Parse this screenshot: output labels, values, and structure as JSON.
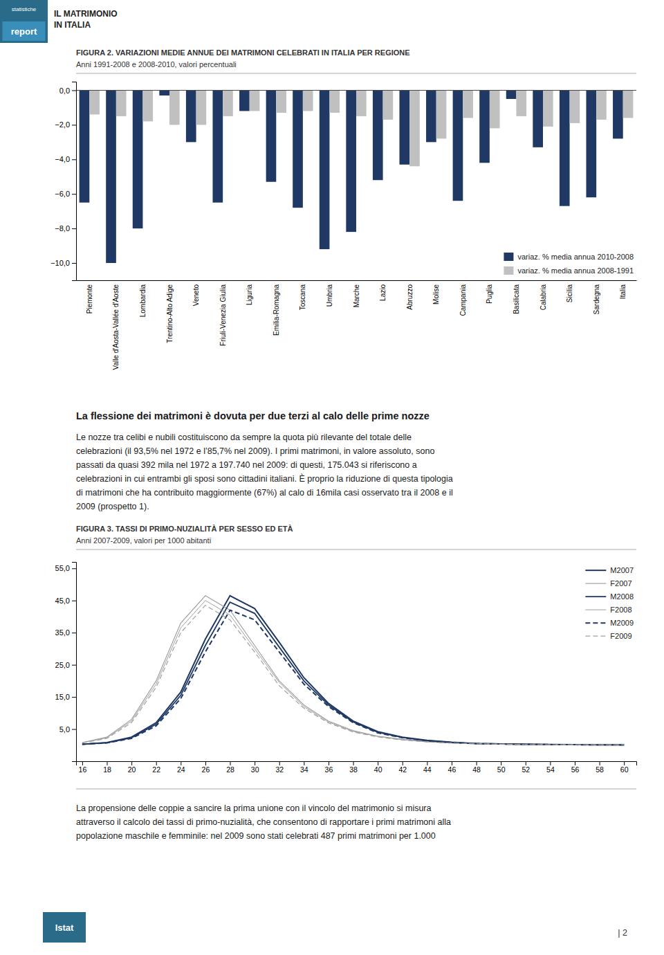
{
  "header": {
    "logo": [
      "statistiche",
      "report"
    ],
    "color": "#2a6b8a",
    "lines": [
      "IL MATRIMONIO",
      "IN ITALIA"
    ]
  },
  "chart_data": [
    {
      "type": "bar",
      "title": "FIGURA 2. VARIAZIONI MEDIE ANNUE DEI MATRIMONI CELEBRATI IN ITALIA PER REGIONE",
      "subtitle": "Anni 1991-2008 e 2008-2010, valori percentuali",
      "categories": [
        "Piemonte",
        "Valle d'Aosta-Vallée d'Aoste",
        "Lombardia",
        "Trentino-Alto Adige",
        "Veneto",
        "Friuli-Venezia Giulia",
        "Liguria",
        "Emilia-Romagna",
        "Toscana",
        "Umbria",
        "Marche",
        "Lazio",
        "Abruzzo",
        "Molise",
        "Campania",
        "Puglia",
        "Basilicata",
        "Calabria",
        "Sicilia",
        "Sardegna",
        "Italia"
      ],
      "series": [
        {
          "name": "variaz. % media annua 2010-2008",
          "color": "#1f3864",
          "values": [
            -6.5,
            -10.0,
            -8.0,
            -0.3,
            -3.0,
            -6.5,
            -1.2,
            -5.3,
            -6.8,
            -9.2,
            -8.2,
            -5.2,
            -4.3,
            -3.0,
            -6.4,
            -4.2,
            -0.5,
            -3.3,
            -6.7,
            -6.2,
            -2.8
          ]
        },
        {
          "name": "variaz. % media annua 2008-1991",
          "color": "#c0c0c0",
          "values": [
            -1.4,
            -1.5,
            -1.8,
            -2.0,
            -2.0,
            -1.5,
            -1.2,
            -1.3,
            -1.2,
            -1.3,
            -1.5,
            -1.7,
            -4.4,
            -2.8,
            -1.6,
            -2.2,
            -1.5,
            -2.1,
            -1.9,
            -1.7,
            -1.6
          ]
        }
      ],
      "ylim": [
        -11,
        0.5
      ],
      "yticks": [
        {
          "value": 0.0,
          "label": "0,0"
        },
        {
          "value": -2.0,
          "label": "−2,0"
        },
        {
          "value": -4.0,
          "label": "−4,0"
        },
        {
          "value": -6.0,
          "label": "−6,0"
        },
        {
          "value": -8.0,
          "label": "−8,0"
        },
        {
          "value": -10.0,
          "label": "−10,0"
        }
      ],
      "grid": false,
      "legend": "lower right"
    },
    {
      "type": "line",
      "title": "FIGURA 3. TASSI DI PRIMO-NUZIALITÀ PER SESSO ED ETÀ",
      "subtitle": "Anni 2007-2009, valori per 1000 abitanti",
      "x": [
        16,
        18,
        20,
        22,
        24,
        26,
        28,
        30,
        32,
        34,
        36,
        38,
        40,
        42,
        44,
        46,
        48,
        50,
        52,
        54,
        56,
        58,
        60
      ],
      "xlim": [
        15.5,
        61
      ],
      "xticks": [
        16,
        18,
        20,
        22,
        24,
        26,
        28,
        30,
        32,
        34,
        36,
        38,
        40,
        42,
        44,
        46,
        48,
        50,
        52,
        54,
        56,
        58,
        60
      ],
      "series": [
        {
          "name": "M2007",
          "color": "#1f3864",
          "line_style": "solid",
          "values": [
            0.3,
            0.8,
            2.5,
            7.0,
            16.5,
            33.0,
            46.5,
            42.5,
            32.0,
            21.0,
            13.0,
            7.5,
            4.2,
            2.5,
            1.5,
            0.9,
            0.5,
            0.4,
            0.3,
            0.2,
            0.15,
            0.1,
            0.1
          ]
        },
        {
          "name": "F2007",
          "color": "#a0a0a0",
          "line_style": "solid",
          "values": [
            0.8,
            2.5,
            8.0,
            20.0,
            38.0,
            46.5,
            42.0,
            31.0,
            20.0,
            12.5,
            7.5,
            4.5,
            2.8,
            1.8,
            1.1,
            0.7,
            0.5,
            0.35,
            0.25,
            0.2,
            0.15,
            0.1,
            0.1
          ]
        },
        {
          "name": "M2008",
          "color": "#1f3864",
          "line_style": "solid",
          "values": [
            0.3,
            0.75,
            2.3,
            6.5,
            15.5,
            31.0,
            44.5,
            41.0,
            30.5,
            20.0,
            12.5,
            7.2,
            4.0,
            2.4,
            1.4,
            0.85,
            0.5,
            0.38,
            0.28,
            0.2,
            0.15,
            0.1,
            0.1
          ]
        },
        {
          "name": "F2008",
          "color": "#a0a0a0",
          "line_style": "solid",
          "values": [
            0.75,
            2.3,
            7.5,
            19.0,
            36.5,
            45.0,
            40.5,
            30.0,
            19.5,
            12.0,
            7.2,
            4.3,
            2.7,
            1.7,
            1.05,
            0.65,
            0.45,
            0.33,
            0.23,
            0.18,
            0.13,
            0.1,
            0.08
          ]
        },
        {
          "name": "M2009",
          "color": "#1f3864",
          "line_style": "dashed",
          "values": [
            0.28,
            0.7,
            2.1,
            6.0,
            14.5,
            29.0,
            42.0,
            39.0,
            29.0,
            19.0,
            12.0,
            7.0,
            3.8,
            2.3,
            1.35,
            0.8,
            0.48,
            0.36,
            0.26,
            0.19,
            0.14,
            0.1,
            0.08
          ]
        },
        {
          "name": "F2009",
          "color": "#a0a0a0",
          "line_style": "dashed",
          "values": [
            0.7,
            2.1,
            7.0,
            18.0,
            35.0,
            43.5,
            39.0,
            29.0,
            18.5,
            11.5,
            6.9,
            4.1,
            2.55,
            1.6,
            1.0,
            0.62,
            0.43,
            0.31,
            0.22,
            0.17,
            0.12,
            0.09,
            0.07
          ]
        }
      ],
      "ylim": [
        -5,
        57
      ],
      "yticks": [
        {
          "value": 5.0,
          "label": "5,0"
        },
        {
          "value": 15.0,
          "label": "15,0"
        },
        {
          "value": 25.0,
          "label": "25,0"
        },
        {
          "value": 35.0,
          "label": "35,0"
        },
        {
          "value": 45.0,
          "label": "45,0"
        },
        {
          "value": 55.0,
          "label": "55,0"
        }
      ],
      "grid": false,
      "legend": "upper right"
    }
  ],
  "text": {
    "heading": "La flessione dei matrimoni è dovuta per due terzi al calo delle prime nozze",
    "paragraphs": [
      [
        "Le nozze tra celibi e nubili costituiscono da sempre la quota più rilevante del totale delle",
        "celebrazioni (il 93,5% nel 1972 e l’85,7% nel 2009). I primi matrimoni, in valore assoluto, sono",
        "passati da quasi 392 mila nel 1972 a 197.740 nel 2009: di questi, 175.043 si riferiscono a",
        "celebrazioni in cui entrambi gli sposi sono cittadini italiani. È proprio la riduzione di questa tipologia",
        "di matrimoni che ha contribuito maggiormente (67%) al calo di 16mila casi osservato tra il 2008 e il",
        "2009 (prospetto 1)."
      ],
      [
        "La propensione delle coppie a sancire la prima unione con il vincolo del matrimonio si misura",
        "attraverso il calcolo dei tassi di primo-nuzialità, che consentono di rapportare i primi matrimoni alla",
        "popolazione maschile e femminile: nel 2009 sono stati celebrati 487 primi matrimoni per 1.000"
      ]
    ]
  },
  "footer": {
    "logo": "Istat",
    "page_number": "| 2"
  }
}
